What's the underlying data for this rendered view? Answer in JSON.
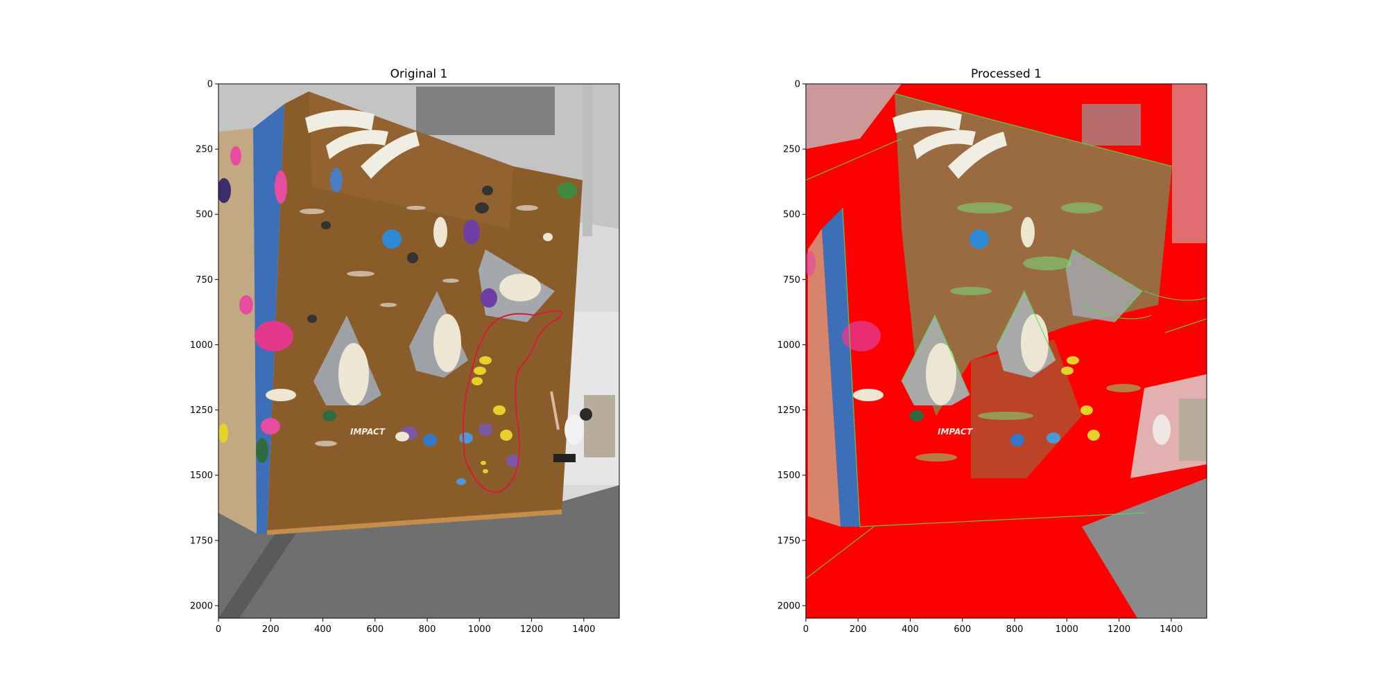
{
  "figure": {
    "panels": [
      {
        "title": "Original 1"
      },
      {
        "title": "Processed 1"
      }
    ]
  },
  "chart_data": [
    {
      "type": "image",
      "title": "Original 1",
      "xlabel": "",
      "ylabel": "",
      "xlim": [
        0,
        1536
      ],
      "ylim": [
        2048,
        0
      ],
      "xticks": [
        0,
        200,
        400,
        600,
        800,
        1000,
        1200,
        1400
      ],
      "yticks": [
        0,
        250,
        500,
        750,
        1000,
        1250,
        1500,
        1750,
        2000
      ],
      "wall_label": "IMPACT",
      "colors": {
        "wall": "#8a5c2a",
        "floor": "#6e6e6e",
        "ceiling": "#c9c9c9",
        "left_panel": "#c2a982",
        "annotation": "#d7193a"
      }
    },
    {
      "type": "image",
      "title": "Processed 1",
      "xlabel": "",
      "ylabel": "",
      "xlim": [
        0,
        1536
      ],
      "ylim": [
        2048,
        0
      ],
      "xticks": [
        0,
        200,
        400,
        600,
        800,
        1000,
        1200,
        1400
      ],
      "yticks": [
        0,
        250,
        500,
        750,
        1000,
        1250,
        1500,
        1750,
        2000
      ],
      "wall_label": "IMPACT",
      "colors": {
        "mask": "#ff0000",
        "edges": "#4ee04e",
        "wall": "#8a6a3a",
        "floor": "#808080"
      }
    }
  ]
}
